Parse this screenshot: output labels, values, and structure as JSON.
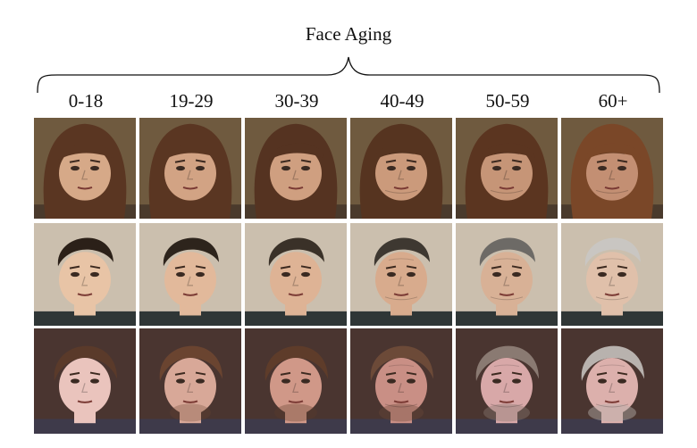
{
  "title": "Face Aging",
  "age_groups": [
    "0-18",
    "19-29",
    "30-39",
    "40-49",
    "50-59",
    "60+"
  ],
  "rows": [
    {
      "subject": "woman-with-bangs",
      "bg": "#6f5a3f",
      "skin": [
        "#d6a988",
        "#d2a384",
        "#cf9f80",
        "#cb9a7b",
        "#c69577",
        "#c38f73"
      ],
      "hair": [
        "#5a3622",
        "#5a3622",
        "#553321",
        "#563420",
        "#5b3520",
        "#7a4728"
      ],
      "clothes": "#4a3a2c"
    },
    {
      "subject": "young-man-dark-hair",
      "bg": "#cbbfae",
      "skin": [
        "#e8c4a6",
        "#e2b99b",
        "#deb395",
        "#d8ab8d",
        "#d8b196",
        "#e0c0aa"
      ],
      "hair": [
        "#2b2018",
        "#2d241c",
        "#3a3128",
        "#3e3831",
        "#6d6a66",
        "#c9c6c2"
      ],
      "clothes": "#2f3636"
    },
    {
      "subject": "man-with-brown-hair",
      "bg": "#4a3530",
      "skin": [
        "#eac4bd",
        "#d8a898",
        "#d09888",
        "#c98f85",
        "#d8a8a8",
        "#dcb0ac"
      ],
      "hair": [
        "#5a3a2a",
        "#6a4430",
        "#5e3c2a",
        "#6c4a38",
        "#8a7a72",
        "#b8b2ae"
      ],
      "clothes": "#3e3a4a"
    }
  ]
}
